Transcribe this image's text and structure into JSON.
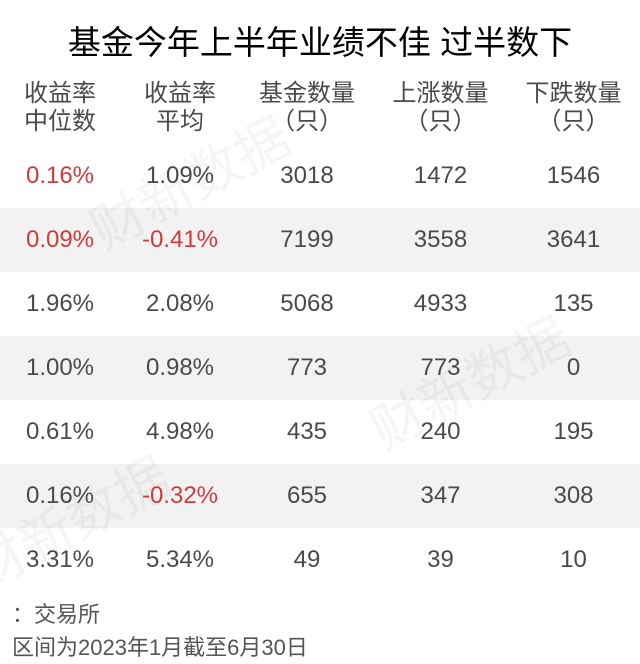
{
  "title": "基金今年上半年业绩不佳 过半数下",
  "watermark": "财新数据",
  "columns": [
    {
      "l1": "收益率",
      "l2": "中位数"
    },
    {
      "l1": "收益率",
      "l2": "平均"
    },
    {
      "l1": "基金数量",
      "l2": "（只）"
    },
    {
      "l1": "上涨数量",
      "l2": "（只）"
    },
    {
      "l1": "下跌数量",
      "l2": "（只）"
    }
  ],
  "rows": [
    {
      "median": "0.16%",
      "median_neg": true,
      "avg": "1.09%",
      "avg_neg": false,
      "total": "3018",
      "up": "1472",
      "down": "1546"
    },
    {
      "median": "0.09%",
      "median_neg": true,
      "avg": "-0.41%",
      "avg_neg": true,
      "total": "7199",
      "up": "3558",
      "down": "3641"
    },
    {
      "median": "1.96%",
      "median_neg": false,
      "avg": "2.08%",
      "avg_neg": false,
      "total": "5068",
      "up": "4933",
      "down": "135"
    },
    {
      "median": "1.00%",
      "median_neg": false,
      "avg": "0.98%",
      "avg_neg": false,
      "total": "773",
      "up": "773",
      "down": "0"
    },
    {
      "median": "0.61%",
      "median_neg": false,
      "avg": "4.98%",
      "avg_neg": false,
      "total": "435",
      "up": "240",
      "down": "195"
    },
    {
      "median": "0.16%",
      "median_neg": false,
      "avg": "-0.32%",
      "avg_neg": true,
      "total": "655",
      "up": "347",
      "down": "308"
    },
    {
      "median": "3.31%",
      "median_neg": false,
      "avg": "5.34%",
      "avg_neg": false,
      "total": "49",
      "up": "39",
      "down": "10"
    }
  ],
  "footer": {
    "line1": "：交易所",
    "line2": "区间为2023年1月截至6月30日"
  },
  "colors": {
    "neg": "#d23b3b",
    "text": "#4a4a4a",
    "row_alt": "#f2f2f2",
    "bg": "#ffffff"
  }
}
